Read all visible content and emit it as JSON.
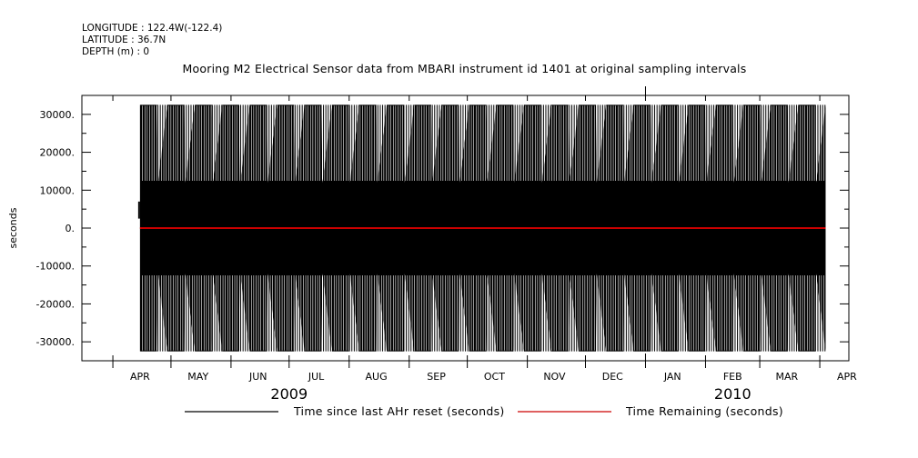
{
  "header": {
    "longitude": "LONGITUDE : 122.4W(-122.4)",
    "latitude": "LATITUDE : 36.7N",
    "depth": "DEPTH (m) : 0"
  },
  "chart_data": {
    "type": "line",
    "title": "Mooring M2 Electrical Sensor data from MBARI instrument id 1401 at original sampling intervals",
    "ylabel": "seconds",
    "xlabel": "",
    "ylim": [
      -35000,
      35000
    ],
    "xlim": [
      "2009-03-16",
      "2010-04-16"
    ],
    "y_ticks": [
      30000,
      20000,
      10000,
      0,
      -10000,
      -20000,
      -30000
    ],
    "y_tick_labels": [
      "30000.",
      "20000.",
      "10000.",
      "0.",
      "-10000.",
      "-20000.",
      "-30000."
    ],
    "month_labels": [
      "APR",
      "MAY",
      "JUN",
      "JUL",
      "AUG",
      "SEP",
      "OCT",
      "NOV",
      "DEC",
      "JAN",
      "FEB",
      "MAR",
      "APR"
    ],
    "year_labels": [
      "2009",
      "2010"
    ],
    "grid": false,
    "legend_position": "bottom",
    "series": [
      {
        "name": "Time since last AHr reset (seconds)",
        "color": "#000000",
        "x_start": "2009-04-15",
        "x_end": "2010-04-04",
        "oscillation_amplitude": 32500,
        "envelope_inner_max": 32500,
        "envelope_inner_min": 12000
      },
      {
        "name": "Time Remaining (seconds)",
        "color": "#cc0000",
        "x_start": "2009-04-15",
        "x_end": "2010-04-04",
        "values_constant": 0
      }
    ]
  }
}
